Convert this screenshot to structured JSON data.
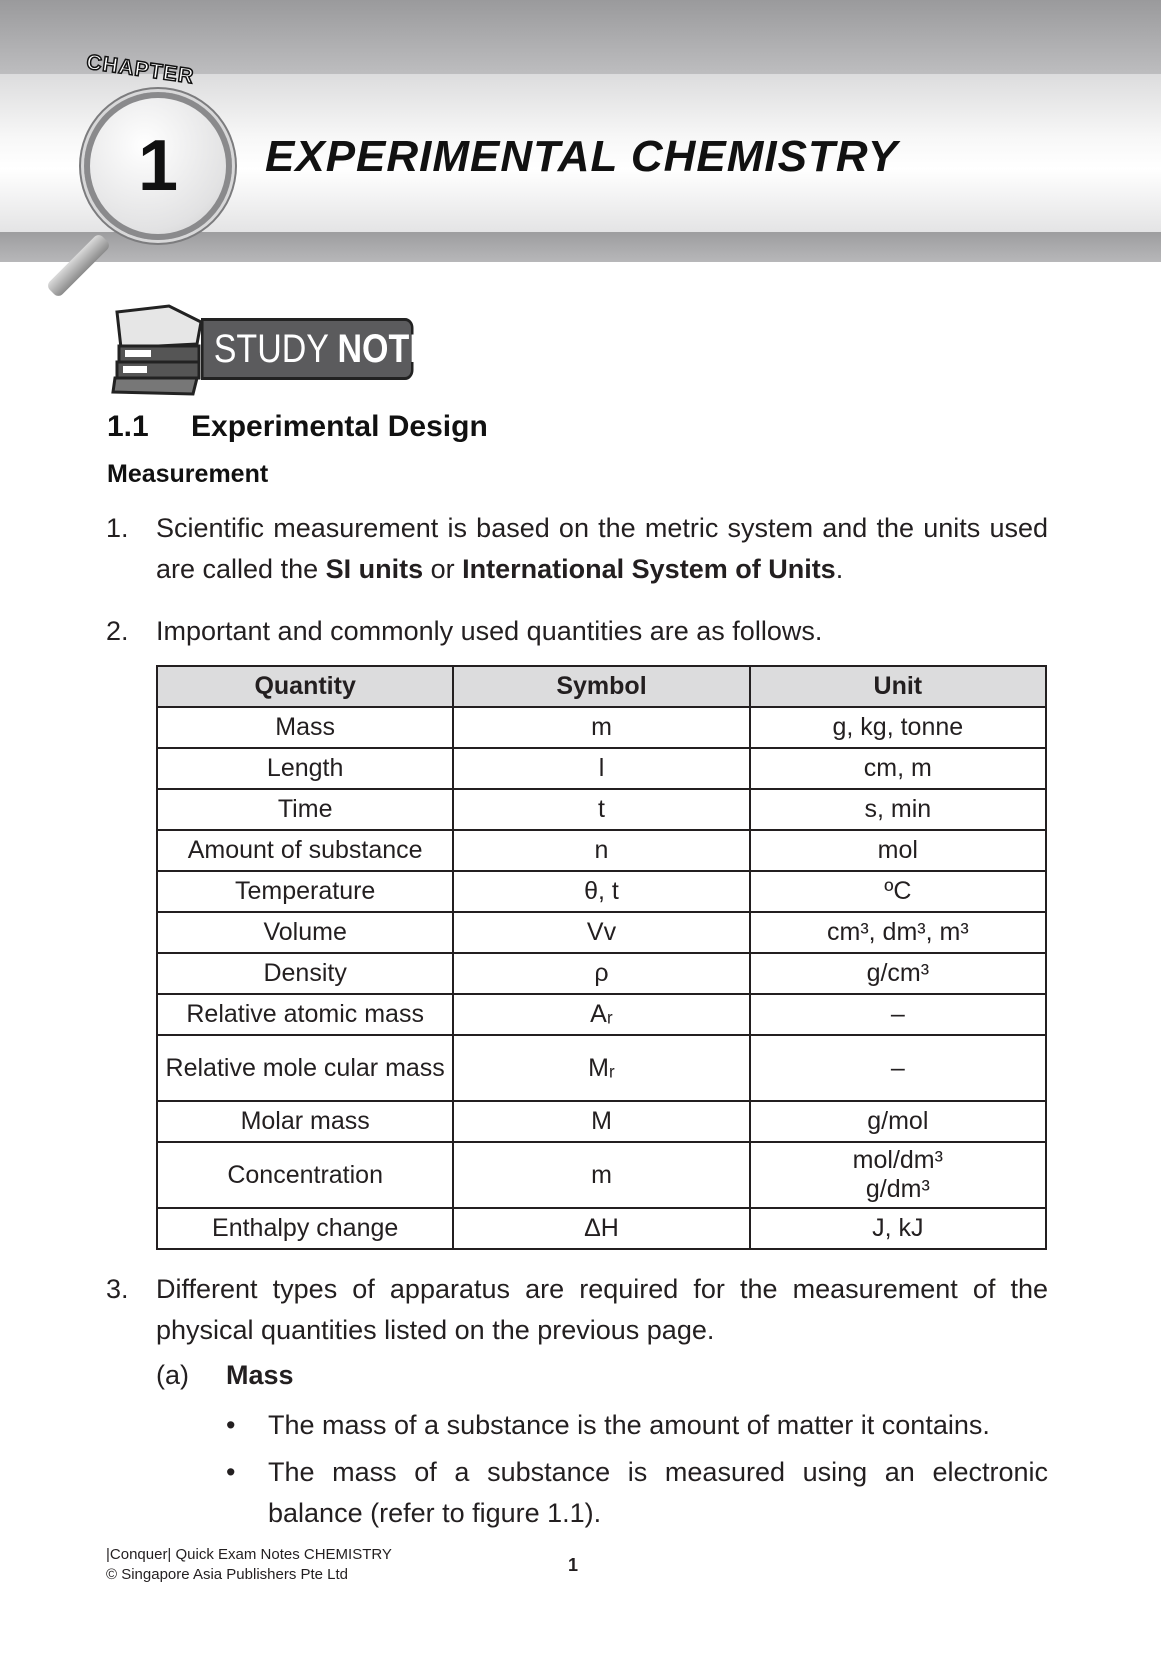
{
  "header": {
    "chapter_word": "CHAPTER",
    "chapter_number": "1",
    "title": "EXPERIMENTAL CHEMISTRY"
  },
  "badge": {
    "study": "STUDY",
    "notes": "NOTES"
  },
  "section": {
    "number": "1.1",
    "title": "Experimental Design",
    "subheading": "Measurement"
  },
  "items": [
    {
      "num": "1.",
      "pre": "Scientific measurement is based on the metric system and the units used are called the ",
      "b1": "SI units",
      "mid": " or ",
      "b2": "International System of Units",
      "post": "."
    },
    {
      "num": "2.",
      "text": "Important and commonly used quantities are as follows."
    },
    {
      "num": "3.",
      "text": "Different types of apparatus are required for the measurement of the physical quantities listed on the previous page."
    }
  ],
  "table": {
    "headers": [
      "Quantity",
      "Symbol",
      "Unit"
    ],
    "rows": [
      [
        "Mass",
        "m",
        "g, kg, tonne"
      ],
      [
        "Length",
        "l",
        "cm, m"
      ],
      [
        "Time",
        "t",
        "s, min"
      ],
      [
        "Amount of substance",
        "n",
        "mol"
      ],
      [
        "Temperature",
        "θ, t",
        "ºC"
      ],
      [
        "Volume",
        "Vv",
        "cm³, dm³, m³"
      ],
      [
        "Density",
        "ρ",
        "g/cm³"
      ],
      [
        "Relative atomic mass",
        "Aᵣ",
        "–"
      ],
      [
        "Relative mole cular mass",
        "Mᵣ",
        "–"
      ],
      [
        "Molar mass",
        "M",
        "g/mol"
      ],
      [
        "Concentration",
        "m",
        "mol/dm³ g/dm³"
      ],
      [
        "Enthalpy change",
        "ΔH",
        "J, kJ"
      ]
    ]
  },
  "subsection": {
    "label": "(a)",
    "title": "Mass"
  },
  "bullets": [
    "The mass of a substance is the amount of matter it contains.",
    "The mass of a substance is measured using an electronic balance (refer to figure 1.1)."
  ],
  "footer": {
    "line1": "|Conquer| Quick Exam Notes CHEMISTRY",
    "line2": "© Singapore Asia Publishers Pte Ltd",
    "page": "1"
  }
}
